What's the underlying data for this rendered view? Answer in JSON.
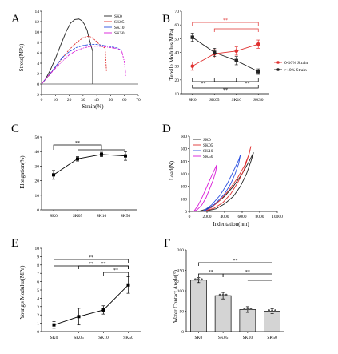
{
  "figure": {
    "panel_letters": [
      "A",
      "B",
      "C",
      "D",
      "E",
      "F"
    ]
  },
  "colors": {
    "SK0": "#222222",
    "SK05": "#e0302f",
    "SK10": "#2a4fe0",
    "SK50": "#d81bd8",
    "bar_fill": "#d4d4d4"
  },
  "chart_data": [
    {
      "panel": "A",
      "type": "line",
      "xlabel": "Strain(%)",
      "ylabel": "Stress(MPa)",
      "xlim": [
        0,
        70
      ],
      "ylim": [
        -2,
        14
      ],
      "xticks": [
        "0",
        "10",
        "20",
        "30",
        "40",
        "50",
        "60",
        "70"
      ],
      "yticks": [
        "-2",
        "0",
        "2",
        "4",
        "6",
        "8",
        "10",
        "12",
        "14"
      ],
      "legend_position": "top-right",
      "series": [
        {
          "name": "SK0",
          "x": [
            0,
            3,
            6,
            10,
            14,
            18,
            21,
            24,
            27,
            29,
            31,
            33,
            34,
            35,
            36,
            37,
            37
          ],
          "y": [
            0,
            1,
            2.5,
            4.9,
            7.6,
            10.2,
            11.7,
            12.4,
            12.5,
            12.2,
            11.5,
            10.3,
            9.2,
            8.2,
            7.2,
            6.3,
            0
          ]
        },
        {
          "name": "SK05",
          "x": [
            0,
            5,
            10,
            15,
            20,
            25,
            30,
            34,
            36,
            38,
            40,
            42,
            44,
            46,
            47
          ],
          "y": [
            0,
            1.5,
            3.2,
            5.0,
            6.6,
            7.9,
            8.9,
            9.2,
            9.0,
            8.6,
            8.1,
            7.6,
            7.2,
            6.9,
            2.5
          ]
        },
        {
          "name": "SK10",
          "x": [
            0,
            5,
            10,
            15,
            20,
            25,
            30,
            35,
            40,
            45,
            50,
            55,
            58
          ],
          "y": [
            0,
            1.6,
            3.3,
            5.1,
            6.2,
            7.0,
            7.4,
            7.6,
            7.6,
            7.4,
            7.2,
            6.9,
            6.4
          ]
        },
        {
          "name": "SK50",
          "x": [
            0,
            5,
            10,
            15,
            20,
            25,
            30,
            35,
            40,
            45,
            50,
            55,
            58,
            60,
            61
          ],
          "y": [
            0,
            1.6,
            3.0,
            4.4,
            5.6,
            6.4,
            6.9,
            7.2,
            7.3,
            7.2,
            7.0,
            6.8,
            6.4,
            4.2,
            1.6
          ]
        }
      ]
    },
    {
      "panel": "B",
      "type": "line",
      "xlabel": "",
      "ylabel": "Tensile Modulus(MPa)",
      "categories": [
        "SK0",
        "SK05",
        "SK10",
        "SK50"
      ],
      "ylim": [
        10,
        70
      ],
      "yticks": [
        "10",
        "20",
        "30",
        "40",
        "50",
        "60",
        "70"
      ],
      "legend_position": "right",
      "series": [
        {
          "name": "0-10% Strain",
          "values": [
            30,
            39,
            41,
            46
          ],
          "errors": [
            3,
            3,
            3,
            3
          ]
        },
        {
          "name": ">10% Strain",
          "values": [
            51,
            40,
            34,
            26
          ],
          "errors": [
            3,
            3,
            3,
            2
          ]
        }
      ],
      "significance": [
        "**",
        "**",
        "**",
        "**"
      ]
    },
    {
      "panel": "C",
      "type": "line",
      "xlabel": "",
      "ylabel": "Elongation(%)",
      "categories": [
        "SK0",
        "SK05",
        "SK10",
        "SK50"
      ],
      "ylim": [
        0,
        50
      ],
      "yticks": [
        "0",
        "10",
        "20",
        "30",
        "40",
        "50"
      ],
      "series": [
        {
          "name": "Elongation",
          "values": [
            24,
            35,
            38,
            37
          ],
          "errors": [
            3,
            1.5,
            1.5,
            3
          ]
        }
      ],
      "significance": [
        "**"
      ]
    },
    {
      "panel": "D",
      "type": "line",
      "xlabel": "Indentation(nm)",
      "ylabel": "Load(N)",
      "xlim": [
        0,
        10000
      ],
      "ylim": [
        0,
        600
      ],
      "xticks": [
        "0",
        "2000",
        "4000",
        "6000",
        "8000",
        "10000"
      ],
      "yticks": [
        "0",
        "100",
        "200",
        "300",
        "400",
        "500",
        "600"
      ],
      "legend_position": "top-left",
      "series": [
        {
          "name": "SK0",
          "x": [
            1000,
            2000,
            3000,
            4000,
            5000,
            6000,
            6800,
            7300,
            7000,
            6500,
            5800,
            5000,
            4000,
            3000,
            2000,
            1000
          ],
          "y": [
            0,
            20,
            60,
            120,
            200,
            300,
            400,
            470,
            400,
            300,
            200,
            120,
            60,
            20,
            5,
            0
          ]
        },
        {
          "name": "SK05",
          "x": [
            1500,
            2500,
            3500,
            4500,
            5500,
            6300,
            6800,
            7000,
            6700,
            6200,
            5500,
            4700,
            3800,
            2800,
            1800,
            1500
          ],
          "y": [
            0,
            30,
            90,
            170,
            270,
            370,
            460,
            520,
            440,
            330,
            230,
            140,
            70,
            25,
            5,
            0
          ]
        },
        {
          "name": "SK10",
          "x": [
            1500,
            2500,
            3500,
            4300,
            5000,
            5600,
            5800,
            5600,
            5200,
            4700,
            4000,
            3200,
            2500,
            1800,
            1500
          ],
          "y": [
            0,
            50,
            130,
            220,
            320,
            410,
            450,
            380,
            300,
            220,
            140,
            80,
            35,
            8,
            0
          ]
        },
        {
          "name": "SK50",
          "x": [
            500,
            1000,
            1500,
            2000,
            2500,
            2900,
            3100,
            3000,
            2700,
            2300,
            1900,
            1400,
            900,
            500
          ],
          "y": [
            0,
            50,
            120,
            200,
            280,
            340,
            370,
            320,
            250,
            180,
            110,
            50,
            15,
            0
          ]
        }
      ]
    },
    {
      "panel": "E",
      "type": "line",
      "xlabel": "",
      "ylabel": "Young's Modulus(MPa)",
      "categories": [
        "SK0",
        "SK05",
        "SK10",
        "SK50"
      ],
      "ylim": [
        0,
        10
      ],
      "yticks": [
        "0",
        "1",
        "2",
        "3",
        "4",
        "5",
        "6",
        "7",
        "8",
        "9",
        "10"
      ],
      "series": [
        {
          "name": "Young's Modulus",
          "values": [
            0.8,
            1.8,
            2.6,
            5.6
          ],
          "errors": [
            0.4,
            1.0,
            0.5,
            1.0
          ]
        }
      ],
      "significance": [
        "**",
        "**",
        "**",
        "**"
      ]
    },
    {
      "panel": "F",
      "type": "bar",
      "xlabel": "",
      "ylabel": "Water Contact Angle(°)",
      "categories": [
        "SK0",
        "SK05",
        "SK10",
        "SK50"
      ],
      "ylim": [
        0,
        200
      ],
      "yticks": [
        "0",
        "50",
        "100",
        "150",
        "200"
      ],
      "values": [
        126,
        88,
        54,
        50
      ],
      "errors": [
        6,
        8,
        7,
        6
      ],
      "significance": [
        "**",
        "**",
        "**"
      ]
    }
  ]
}
